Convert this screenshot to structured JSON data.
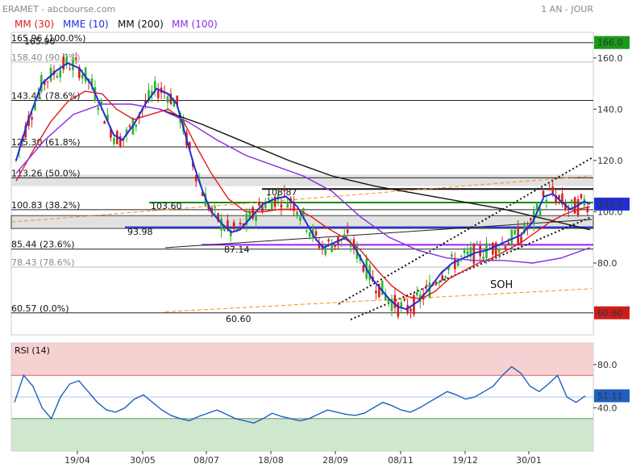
{
  "header": {
    "title": "ERAMET - abcbourse.com",
    "period": "1 AN - JOUR"
  },
  "legend": [
    {
      "name": "MM (30)",
      "color": "#e31a1c"
    },
    {
      "name": "MME (10)",
      "color": "#1f2fd6"
    },
    {
      "name": "MM (200)",
      "color": "#111111"
    },
    {
      "name": "MM (100)",
      "color": "#8a2be2"
    }
  ],
  "chart_data": [
    {
      "type": "line",
      "panel": "price",
      "x_ticks": [
        "19/04",
        "30/05",
        "08/07",
        "18/08",
        "28/09",
        "08/11",
        "19/12",
        "30/01"
      ],
      "y_ticks": [
        80.0,
        100.0,
        120.0,
        140.0,
        160.0
      ],
      "y_range": [
        52,
        170
      ],
      "grid": false,
      "last_price_label": "103.0",
      "resistance_label": "166.0",
      "support_label": "60.60",
      "colors": {
        "up": "#2db52d",
        "down": "#d42020",
        "fibo": "#111111",
        "band": "#d9d9d9"
      },
      "fibonacci_levels": [
        {
          "label": "165.96 (100.0%)",
          "value": 165.96
        },
        {
          "label": "158.40 (90.0%)",
          "value": 158.4,
          "muted": true
        },
        {
          "label": "143.41 (78.6%)",
          "value": 143.41
        },
        {
          "label": "125.30 (61.8%)",
          "value": 125.3
        },
        {
          "label": "113.26 (50.0%)",
          "value": 113.26
        },
        {
          "label": "100.83 (38.2%)",
          "value": 100.83
        },
        {
          "label": "85.44 (23.6%)",
          "value": 85.44
        },
        {
          "label": "78.43 (78.6%)",
          "value": 78.43,
          "muted": true
        },
        {
          "label": "60.57 (0.0%)",
          "value": 60.57
        }
      ],
      "annotations": [
        {
          "text": "165.90",
          "color": "#a020f0"
        },
        {
          "text": "108.87",
          "color": "#111111"
        },
        {
          "text": "103.60",
          "color": "#1a8a1a"
        },
        {
          "text": "93.98",
          "color": "#1f2fd6"
        },
        {
          "text": "87.14",
          "color": "#a020f0"
        },
        {
          "text": "60.60",
          "color": "#a020f0"
        },
        {
          "text": "SOH",
          "color": "#111111"
        }
      ],
      "series": [
        {
          "name": "MME (10)",
          "color": "#1f2fd6",
          "values": [
            [
              0,
              120
            ],
            [
              8,
              135
            ],
            [
              18,
              150
            ],
            [
              28,
              155
            ],
            [
              36,
              158
            ],
            [
              44,
              156
            ],
            [
              52,
              150
            ],
            [
              60,
              140
            ],
            [
              68,
              130
            ],
            [
              74,
              128
            ],
            [
              82,
              134
            ],
            [
              90,
              142
            ],
            [
              98,
              148
            ],
            [
              106,
              146
            ],
            [
              112,
              142
            ],
            [
              118,
              130
            ],
            [
              124,
              118
            ],
            [
              130,
              108
            ],
            [
              136,
              100
            ],
            [
              144,
              95
            ],
            [
              150,
              92
            ],
            [
              156,
              93
            ],
            [
              164,
              98
            ],
            [
              172,
              103
            ],
            [
              180,
              105
            ],
            [
              188,
              106
            ],
            [
              196,
              102
            ],
            [
              202,
              96
            ],
            [
              208,
              90
            ],
            [
              214,
              86
            ],
            [
              222,
              88
            ],
            [
              230,
              90
            ],
            [
              236,
              86
            ],
            [
              242,
              80
            ],
            [
              248,
              74
            ],
            [
              254,
              70
            ],
            [
              260,
              66
            ],
            [
              266,
              63
            ],
            [
              272,
              62
            ],
            [
              280,
              65
            ],
            [
              288,
              70
            ],
            [
              296,
              76
            ],
            [
              304,
              80
            ],
            [
              312,
              82
            ],
            [
              320,
              84
            ],
            [
              328,
              85
            ],
            [
              336,
              87
            ],
            [
              344,
              89
            ],
            [
              352,
              91
            ],
            [
              360,
              96
            ],
            [
              368,
              106
            ],
            [
              374,
              107
            ],
            [
              380,
              104
            ],
            [
              386,
              101
            ],
            [
              390,
              102
            ],
            [
              396,
              104
            ],
            [
              400,
              103
            ]
          ]
        },
        {
          "name": "MM (30)",
          "color": "#e31a1c",
          "values": [
            [
              0,
              112
            ],
            [
              12,
              124
            ],
            [
              24,
              135
            ],
            [
              36,
              143
            ],
            [
              48,
              147
            ],
            [
              60,
              146
            ],
            [
              70,
              140
            ],
            [
              82,
              136
            ],
            [
              94,
              138
            ],
            [
              106,
              140
            ],
            [
              116,
              136
            ],
            [
              126,
              125
            ],
            [
              136,
              115
            ],
            [
              148,
              105
            ],
            [
              160,
              100
            ],
            [
              172,
              100
            ],
            [
              184,
              101
            ],
            [
              196,
              101
            ],
            [
              206,
              98
            ],
            [
              216,
              94
            ],
            [
              228,
              90
            ],
            [
              240,
              85
            ],
            [
              252,
              77
            ],
            [
              262,
              71
            ],
            [
              272,
              67
            ],
            [
              282,
              66
            ],
            [
              292,
              69
            ],
            [
              302,
              74
            ],
            [
              312,
              77
            ],
            [
              322,
              80
            ],
            [
              332,
              82
            ],
            [
              342,
              85
            ],
            [
              352,
              88
            ],
            [
              362,
              92
            ],
            [
              372,
              96
            ],
            [
              382,
              99
            ],
            [
              392,
              101
            ],
            [
              400,
              102
            ]
          ]
        },
        {
          "name": "MM (200)",
          "color": "#111111",
          "values": [
            [
              100,
              140
            ],
            [
              130,
              134
            ],
            [
              160,
              127
            ],
            [
              190,
              120
            ],
            [
              220,
              114
            ],
            [
              250,
              110
            ],
            [
              280,
              107
            ],
            [
              310,
              104
            ],
            [
              340,
              101
            ],
            [
              370,
              97
            ],
            [
              400,
              93
            ]
          ]
        },
        {
          "name": "MM (100)",
          "color": "#8a2be2",
          "values": [
            [
              0,
              115
            ],
            [
              20,
              128
            ],
            [
              40,
              138
            ],
            [
              60,
              142
            ],
            [
              80,
              142
            ],
            [
              100,
              140
            ],
            [
              120,
              135
            ],
            [
              140,
              128
            ],
            [
              160,
              122
            ],
            [
              180,
              118
            ],
            [
              200,
              114
            ],
            [
              220,
              108
            ],
            [
              240,
              98
            ],
            [
              260,
              90
            ],
            [
              280,
              85
            ],
            [
              300,
              82
            ],
            [
              320,
              81
            ],
            [
              340,
              81
            ],
            [
              360,
              80
            ],
            [
              380,
              82
            ],
            [
              400,
              86
            ]
          ]
        }
      ]
    },
    {
      "type": "line",
      "panel": "rsi",
      "series_name": "RSI (14)",
      "color": "#1f5fbf",
      "y_ticks": [
        40.0,
        80.0
      ],
      "last_value_label": "51.11",
      "overbought": 70,
      "oversold": 30,
      "values": [
        45,
        70,
        60,
        40,
        30,
        50,
        62,
        65,
        55,
        45,
        38,
        36,
        40,
        48,
        52,
        45,
        38,
        33,
        30,
        28,
        32,
        35,
        38,
        34,
        30,
        28,
        26,
        30,
        35,
        32,
        30,
        28,
        30,
        34,
        38,
        36,
        34,
        33,
        35,
        40,
        45,
        42,
        38,
        36,
        40,
        45,
        50,
        55,
        52,
        48,
        50,
        55,
        60,
        70,
        78,
        72,
        60,
        55,
        62,
        70,
        50,
        45,
        51
      ]
    }
  ]
}
